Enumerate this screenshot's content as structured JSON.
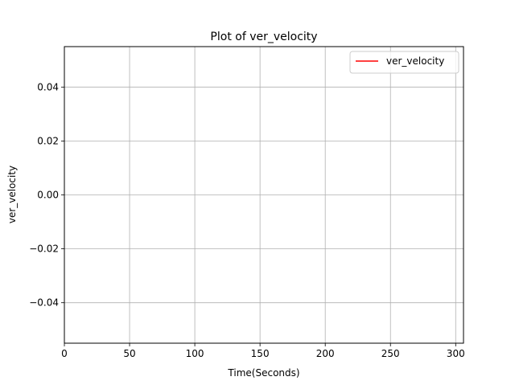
{
  "chart_data": {
    "type": "line",
    "title": "Plot of ver_velocity",
    "xlabel": "Time(Seconds)",
    "ylabel": "ver_velocity",
    "xlim": [
      0,
      306
    ],
    "ylim": [
      -0.055,
      0.055
    ],
    "x_ticks": [
      0,
      50,
      100,
      150,
      200,
      250,
      300
    ],
    "x_tick_labels": [
      "0",
      "50",
      "100",
      "150",
      "200",
      "250",
      "300"
    ],
    "y_ticks": [
      -0.04,
      -0.02,
      0.0,
      0.02,
      0.04
    ],
    "y_tick_labels": [
      "−0.04",
      "−0.02",
      "0.00",
      "0.02",
      "0.04"
    ],
    "grid": true,
    "legend_position": "top-right",
    "series": [
      {
        "name": "ver_velocity",
        "color": "#ff0000",
        "x": [
          0,
          300
        ],
        "y": [
          0,
          0
        ]
      }
    ]
  }
}
